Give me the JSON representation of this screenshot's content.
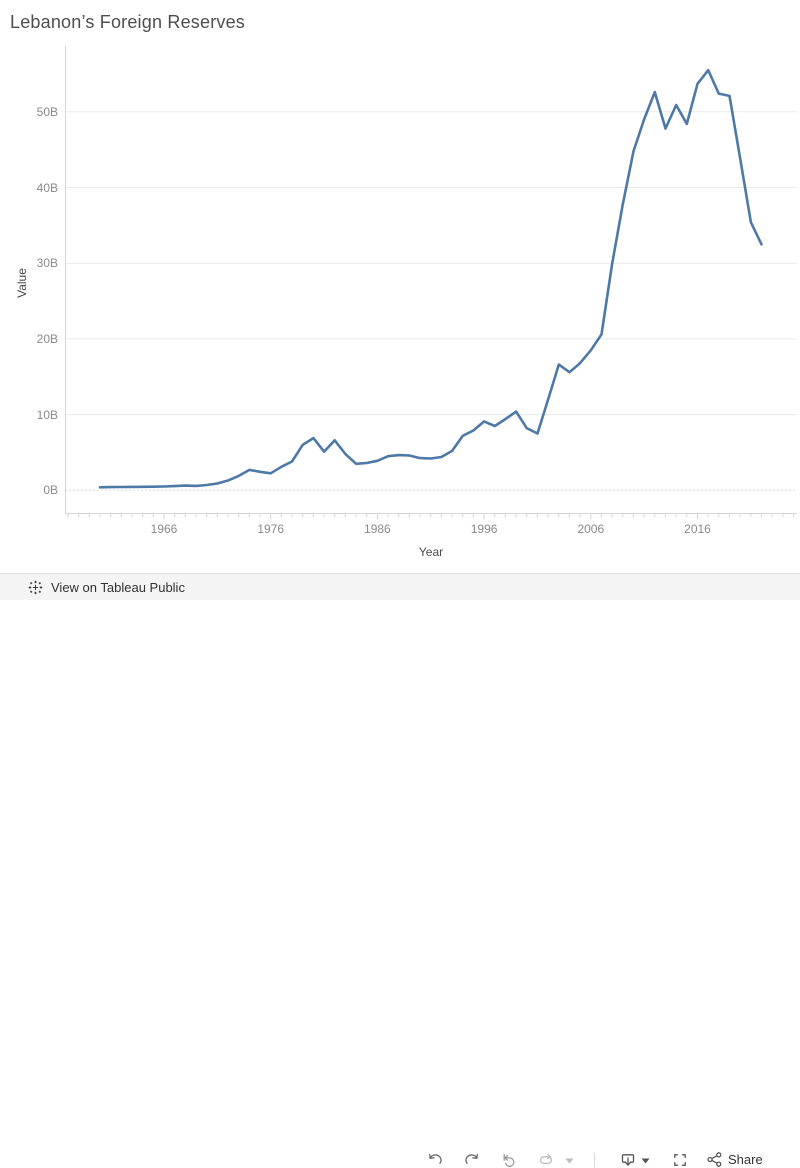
{
  "title": "Lebanon’s Foreign Reserves",
  "chart_data": {
    "type": "line",
    "title": "Lebanon’s Foreign Reserves",
    "xlabel": "Year",
    "ylabel": "Value",
    "x": [
      1960,
      1961,
      1962,
      1963,
      1964,
      1965,
      1966,
      1967,
      1968,
      1969,
      1970,
      1971,
      1972,
      1973,
      1974,
      1975,
      1976,
      1977,
      1978,
      1979,
      1980,
      1981,
      1982,
      1983,
      1984,
      1985,
      1986,
      1987,
      1988,
      1989,
      1990,
      1991,
      1992,
      1993,
      1994,
      1995,
      1996,
      1997,
      1998,
      1999,
      2000,
      2001,
      2002,
      2003,
      2004,
      2005,
      2006,
      2007,
      2008,
      2009,
      2010,
      2011,
      2012,
      2013,
      2014,
      2015,
      2016,
      2017,
      2018,
      2019,
      2020,
      2021,
      2022
    ],
    "values": [
      0.4,
      0.42,
      0.43,
      0.45,
      0.46,
      0.48,
      0.5,
      0.55,
      0.62,
      0.58,
      0.7,
      0.9,
      1.3,
      1.9,
      2.7,
      2.45,
      2.25,
      3.1,
      3.8,
      6.0,
      6.9,
      5.1,
      6.6,
      4.8,
      3.5,
      3.6,
      3.9,
      4.5,
      4.65,
      4.6,
      4.25,
      4.2,
      4.4,
      5.2,
      7.2,
      7.9,
      9.1,
      8.5,
      9.4,
      10.4,
      8.2,
      7.5,
      12.0,
      16.6,
      15.6,
      16.8,
      18.5,
      20.6,
      29.9,
      37.8,
      44.8,
      49.0,
      52.6,
      47.8,
      50.9,
      48.4,
      53.7,
      55.5,
      52.4,
      52.1,
      43.8,
      35.4,
      32.5
    ],
    "unit": "B",
    "y_ticks": [
      {
        "label": "0B",
        "value": 0
      },
      {
        "label": "10B",
        "value": 10
      },
      {
        "label": "20B",
        "value": 20
      },
      {
        "label": "30B",
        "value": 30
      },
      {
        "label": "40B",
        "value": 40
      },
      {
        "label": "50B",
        "value": 50
      }
    ],
    "x_ticks": [
      {
        "label": "1966",
        "value": 1966
      },
      {
        "label": "1976",
        "value": 1976
      },
      {
        "label": "1986",
        "value": 1986
      },
      {
        "label": "1996",
        "value": 1996
      },
      {
        "label": "2006",
        "value": 2006
      },
      {
        "label": "2016",
        "value": 2016
      }
    ],
    "ylim": [
      0,
      57
    ],
    "xlim": [
      1957,
      2025
    ],
    "grid": "horizontal",
    "legend": "none",
    "line_color": "#4e79a7"
  },
  "colors": {
    "line": "#4e79a7",
    "gridline": "#e9e9e9",
    "zero_line": "#b5b5b5",
    "axis_line": "#d7d7d7",
    "title_text": "#4e4e4e",
    "tick_text": "#8a8a8a",
    "axis_label_text": "#4a4a4a",
    "toolbar_bg": "#f4f4f4",
    "toolbar_border": "#e0e0e0",
    "toolbar_text": "#333333",
    "icon": "#6b6b6b",
    "icon_disabled": "#bcbcbc"
  },
  "toolbar": {
    "view_on_label": "View on Tableau Public",
    "share_label": "Share",
    "icons": [
      "tableau-logo-icon",
      "undo-icon",
      "redo-icon",
      "revert-icon",
      "refresh-icon",
      "caret-down-icon",
      "download-icon",
      "fullscreen-icon",
      "share-icon"
    ]
  }
}
